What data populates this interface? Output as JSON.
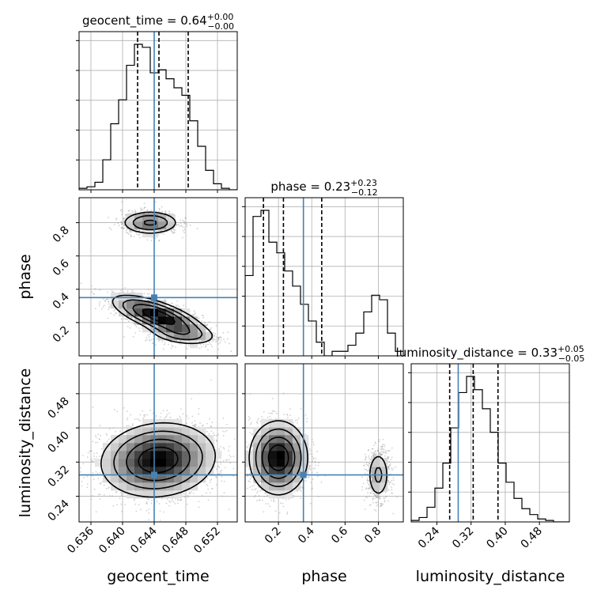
{
  "chart_data": {
    "type": "corner",
    "parameters": [
      "geocent_time",
      "phase",
      "luminosity_distance"
    ],
    "truths": {
      "geocent_time": 0.644,
      "phase": 0.35,
      "luminosity_distance": 0.29
    },
    "titles": [
      {
        "parameter": "geocent_time",
        "text": "geocent_time = 0.64",
        "sup": "+0.00",
        "sub": "−0.00"
      },
      {
        "parameter": "phase",
        "text": "phase = 0.23",
        "sup": "+0.23",
        "sub": "−0.12"
      },
      {
        "parameter": "luminosity_distance",
        "text": "luminosity_distance = 0.33",
        "sup": "+0.05",
        "sub": "−0.05"
      }
    ],
    "ranges": {
      "geocent_time": [
        0.6345,
        0.6545
      ],
      "phase": [
        0.0,
        0.95
      ],
      "luminosity_distance": [
        0.18,
        0.55
      ]
    },
    "ticks": {
      "geocent_time": [
        {
          "v": 0.636,
          "label": "0.636"
        },
        {
          "v": 0.64,
          "label": "0.640"
        },
        {
          "v": 0.644,
          "label": "0.644"
        },
        {
          "v": 0.648,
          "label": "0.648"
        },
        {
          "v": 0.652,
          "label": "0.652"
        }
      ],
      "phase": [
        {
          "v": 0.2,
          "label": "0.2"
        },
        {
          "v": 0.4,
          "label": "0.4"
        },
        {
          "v": 0.6,
          "label": "0.6"
        },
        {
          "v": 0.8,
          "label": "0.8"
        }
      ],
      "luminosity_distance": [
        {
          "v": 0.24,
          "label": "0.24"
        },
        {
          "v": 0.32,
          "label": "0.32"
        },
        {
          "v": 0.4,
          "label": "0.40"
        },
        {
          "v": 0.48,
          "label": "0.48"
        }
      ]
    },
    "axis_labels": {
      "x": [
        "geocent_time",
        "phase",
        "luminosity_distance"
      ],
      "y": [
        "phase",
        "luminosity_distance"
      ]
    },
    "histograms": [
      {
        "parameter": "geocent_time",
        "quantiles": [
          0.6419,
          0.6446,
          0.6483
        ],
        "edges": [
          0.6345,
          0.6355,
          0.6365,
          0.6375,
          0.6385,
          0.6395,
          0.6405,
          0.6415,
          0.6425,
          0.6435,
          0.6445,
          0.6455,
          0.6465,
          0.6475,
          0.6485,
          0.6495,
          0.6505,
          0.6515,
          0.6525,
          0.6535,
          0.6545
        ],
        "counts": [
          0.01,
          0.02,
          0.05,
          0.2,
          0.44,
          0.6,
          0.83,
          0.97,
          0.95,
          0.78,
          0.8,
          0.74,
          0.68,
          0.63,
          0.46,
          0.29,
          0.13,
          0.04,
          0.01,
          0.0
        ]
      },
      {
        "parameter": "phase",
        "quantiles": [
          0.11,
          0.23,
          0.46
        ],
        "edges": [
          0.0,
          0.0475,
          0.095,
          0.1425,
          0.19,
          0.2375,
          0.285,
          0.3325,
          0.38,
          0.4275,
          0.475,
          0.5225,
          0.57,
          0.6175,
          0.665,
          0.7125,
          0.76,
          0.8075,
          0.855,
          0.9025,
          0.95
        ],
        "counts": [
          0.53,
          0.92,
          0.96,
          0.75,
          0.68,
          0.56,
          0.46,
          0.34,
          0.23,
          0.09,
          0.0,
          0.03,
          0.03,
          0.07,
          0.15,
          0.29,
          0.4,
          0.37,
          0.15,
          0.03
        ]
      },
      {
        "parameter": "luminosity_distance",
        "quantiles": [
          0.27,
          0.325,
          0.383
        ],
        "edges": [
          0.18,
          0.1985,
          0.217,
          0.2355,
          0.254,
          0.2725,
          0.291,
          0.3095,
          0.328,
          0.3465,
          0.365,
          0.3835,
          0.402,
          0.4205,
          0.439,
          0.4575,
          0.476,
          0.4945,
          0.513,
          0.5315,
          0.55
        ],
        "counts": [
          0.01,
          0.03,
          0.1,
          0.23,
          0.4,
          0.64,
          0.88,
          0.99,
          0.9,
          0.77,
          0.61,
          0.4,
          0.27,
          0.16,
          0.09,
          0.05,
          0.02,
          0.01,
          0.0,
          0.0
        ]
      }
    ],
    "joint_densities": [
      {
        "x": "geocent_time",
        "y": "phase",
        "modes": [
          {
            "x": 0.6445,
            "y": 0.24,
            "sx": 0.0028,
            "sy": 0.06,
            "rho": -0.7,
            "w": 0.52
          },
          {
            "x": 0.6475,
            "y": 0.13,
            "sx": 0.0022,
            "sy": 0.035,
            "rho": -0.3,
            "w": 0.18
          },
          {
            "x": 0.6435,
            "y": 0.8,
            "sx": 0.0018,
            "sy": 0.035,
            "rho": 0.0,
            "w": 0.3
          }
        ]
      },
      {
        "x": "geocent_time",
        "y": "luminosity_distance",
        "modes": [
          {
            "x": 0.6445,
            "y": 0.325,
            "sx": 0.0035,
            "sy": 0.042,
            "rho": 0.1,
            "w": 1.0
          }
        ]
      },
      {
        "x": "phase",
        "y": "luminosity_distance",
        "modes": [
          {
            "x": 0.2,
            "y": 0.33,
            "sx": 0.085,
            "sy": 0.042,
            "rho": 0.0,
            "w": 0.75
          },
          {
            "x": 0.8,
            "y": 0.29,
            "sx": 0.035,
            "sy": 0.03,
            "rho": 0.0,
            "w": 0.25
          }
        ]
      }
    ],
    "contour_levels": [
      0.12,
      0.28,
      0.52,
      0.78
    ],
    "colors": {
      "line": "#000000",
      "truth": "#4682b4",
      "grid": "#b0b0b0",
      "points": "#9a9a9a"
    }
  }
}
